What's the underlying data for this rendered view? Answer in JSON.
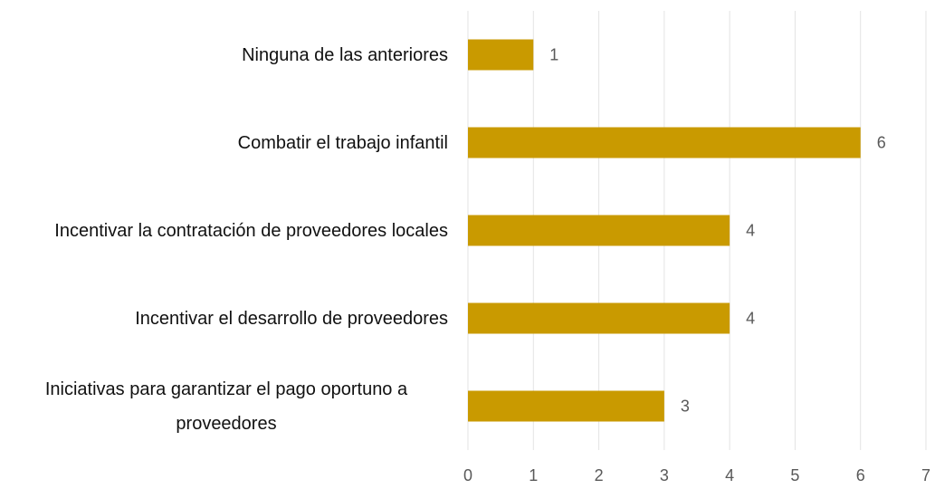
{
  "chart_data": {
    "type": "bar",
    "orientation": "horizontal",
    "categories": [
      "Ninguna de las anteriores",
      "Combatir el trabajo infantil",
      "Incentivar la contratación de proveedores locales",
      "Incentivar el desarrollo de proveedores",
      "Iniciativas para garantizar el pago oportuno a proveedores"
    ],
    "values": [
      1,
      6,
      4,
      4,
      3
    ],
    "color": "#c99a00",
    "xlim": [
      0,
      7
    ],
    "xticks": [
      0,
      1,
      2,
      3,
      4,
      5,
      6,
      7
    ],
    "grid": true
  }
}
